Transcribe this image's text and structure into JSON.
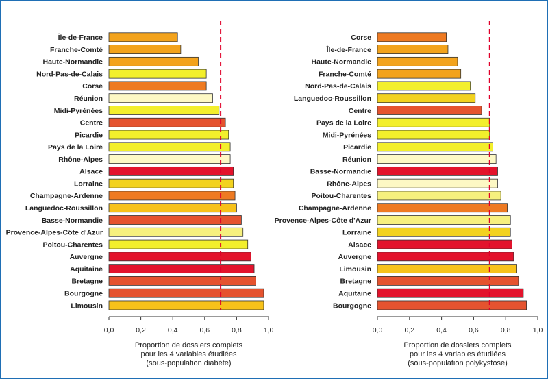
{
  "colors": {
    "frame": "#1f6fb5",
    "reference_line": "#e0002a",
    "bar_stroke": "#333333",
    "palette": {
      "yellow_light": "#fdf8c4",
      "yellow_pale": "#f6f07e",
      "yellow": "#f3ef2c",
      "yellow_gold": "#f2d21f",
      "gold": "#f7c21a",
      "orange_light": "#f3a31c",
      "orange": "#ee7a22",
      "orange_red": "#e5532f",
      "red": "#e3132c"
    }
  },
  "chart_data": [
    {
      "type": "bar",
      "orientation": "horizontal",
      "xlabel": [
        "Proportion de dossiers complets",
        "pour les 4 variables étudiées",
        "(sous-population diabète)"
      ],
      "xlim": [
        0,
        1
      ],
      "xticks": [
        "0,0",
        "0,2",
        "0,4",
        "0,6",
        "0,8",
        "1,0"
      ],
      "reference_line": 0.7,
      "categories": [
        "Île-de-France",
        "Franche-Comté",
        "Haute-Normandie",
        "Nord-Pas-de-Calais",
        "Corse",
        "Réunion",
        "Midi-Pyrénées",
        "Centre",
        "Picardie",
        "Pays de la Loire",
        "Rhône-Alpes",
        "Alsace",
        "Lorraine",
        "Champagne-Ardenne",
        "Languedoc-Roussillon",
        "Basse-Normandie",
        "Provence-Alpes-Côte d'Azur",
        "Poitou-Charentes",
        "Auvergne",
        "Aquitaine",
        "Bretagne",
        "Bourgogne",
        "Limousin"
      ],
      "values": [
        0.43,
        0.45,
        0.56,
        0.61,
        0.61,
        0.65,
        0.69,
        0.73,
        0.75,
        0.76,
        0.76,
        0.78,
        0.78,
        0.79,
        0.8,
        0.83,
        0.84,
        0.87,
        0.89,
        0.91,
        0.92,
        0.97,
        0.97
      ],
      "colors": [
        "orange_light",
        "orange_light",
        "orange_light",
        "yellow",
        "orange",
        "yellow_light",
        "yellow",
        "orange_red",
        "yellow",
        "yellow",
        "yellow_light",
        "red",
        "yellow_gold",
        "orange",
        "gold",
        "orange_red",
        "yellow_pale",
        "yellow",
        "red",
        "red",
        "orange_red",
        "orange_red",
        "gold"
      ]
    },
    {
      "type": "bar",
      "orientation": "horizontal",
      "xlabel": [
        "Proportion de dossiers complets",
        "pour les 4 variables étudiées",
        "(sous-population polykystose)"
      ],
      "xlim": [
        0,
        1
      ],
      "xticks": [
        "0,0",
        "0,2",
        "0,4",
        "0,6",
        "0,8",
        "1,0"
      ],
      "reference_line": 0.7,
      "categories": [
        "Corse",
        "Île-de-France",
        "Haute-Normandie",
        "Franche-Comté",
        "Nord-Pas-de-Calais",
        "Languedoc-Roussillon",
        "Centre",
        "Pays de la Loire",
        "Midi-Pyrénées",
        "Picardie",
        "Réunion",
        "Basse-Normandie",
        "Rhône-Alpes",
        "Poitou-Charentes",
        "Champagne-Ardenne",
        "Provence-Alpes-Côte d'Azur",
        "Lorraine",
        "Alsace",
        "Auvergne",
        "Limousin",
        "Bretagne",
        "Aquitaine",
        "Bourgogne"
      ],
      "values": [
        0.43,
        0.44,
        0.5,
        0.52,
        0.58,
        0.61,
        0.65,
        0.7,
        0.7,
        0.72,
        0.74,
        0.75,
        0.75,
        0.77,
        0.81,
        0.83,
        0.83,
        0.84,
        0.85,
        0.87,
        0.88,
        0.91,
        0.93
      ],
      "colors": [
        "orange",
        "orange_light",
        "orange_light",
        "orange_light",
        "yellow",
        "yellow_gold",
        "orange_red",
        "yellow",
        "yellow",
        "yellow",
        "yellow_light",
        "red",
        "yellow_light",
        "yellow_pale",
        "orange",
        "yellow_pale",
        "yellow_gold",
        "red",
        "red",
        "gold",
        "orange_red",
        "red",
        "orange_red"
      ]
    }
  ]
}
